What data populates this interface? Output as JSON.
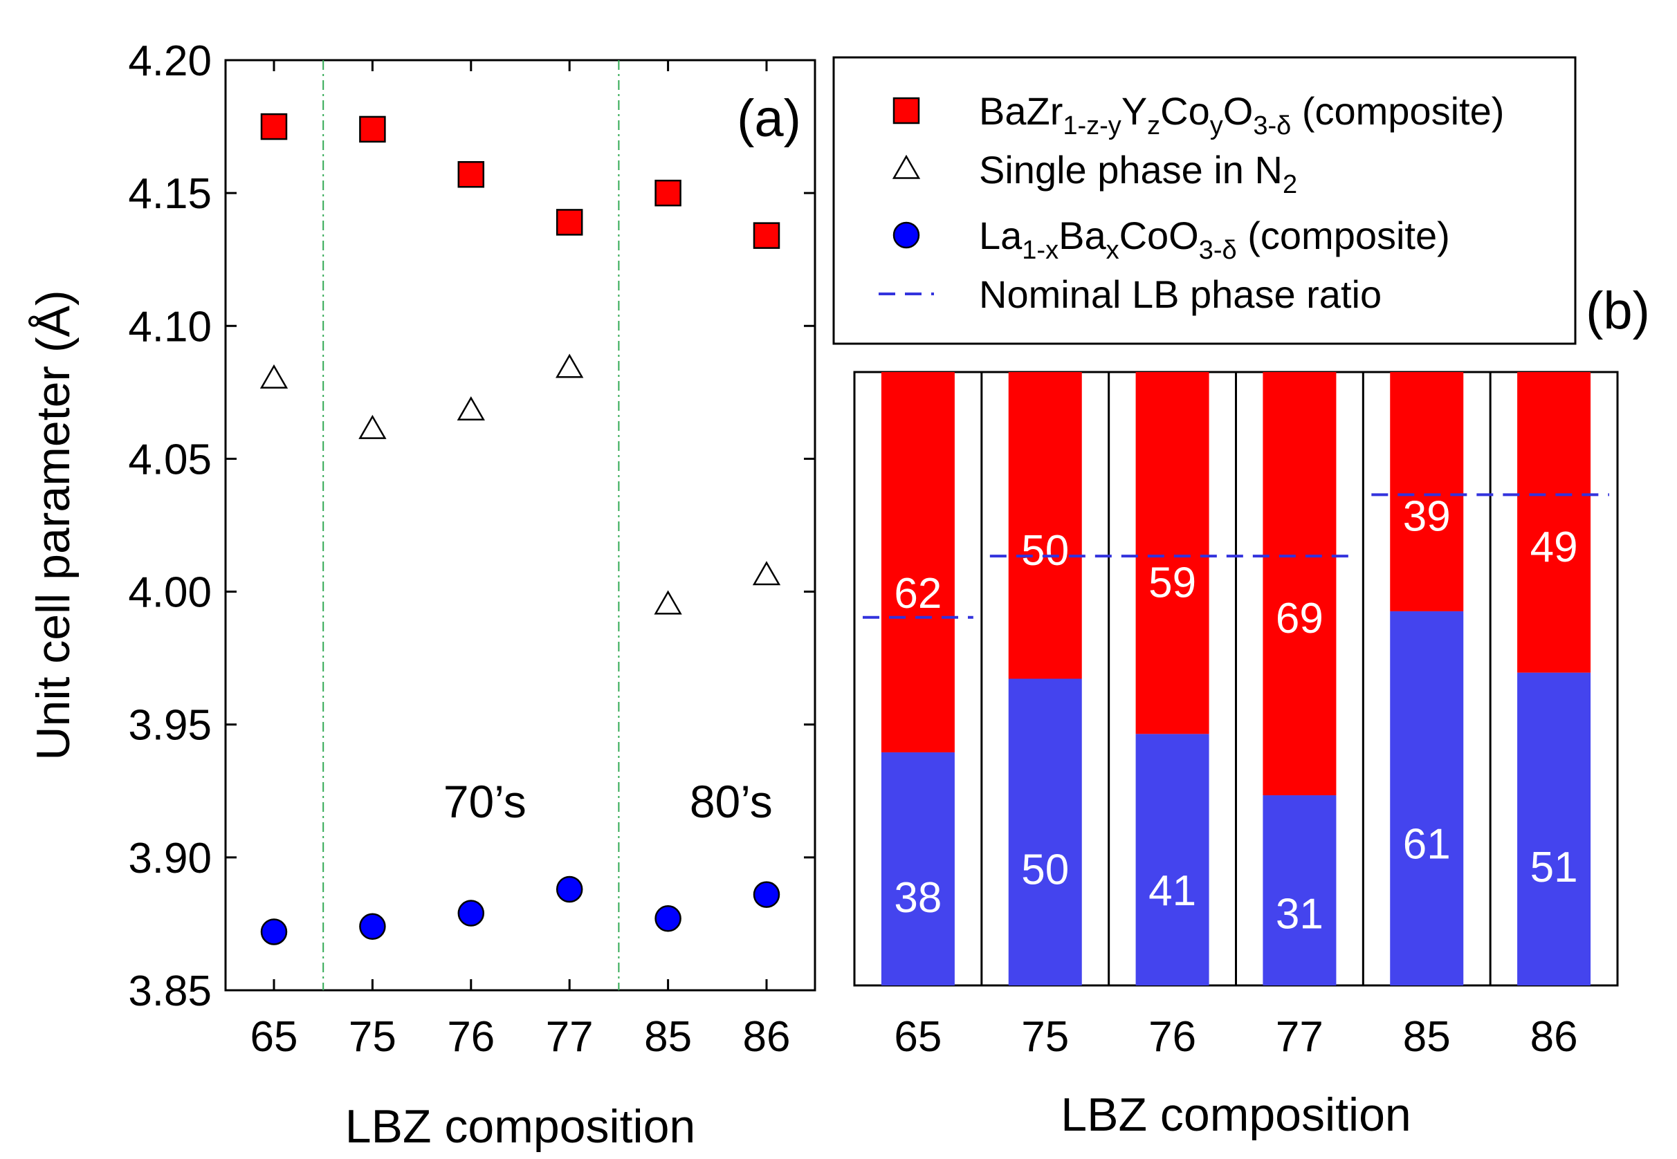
{
  "chart_data": [
    {
      "panel": "(a)",
      "type": "scatter",
      "panel_label": "(a)",
      "xlabel": "LBZ composition",
      "ylabel": "Unit cell parameter (Å)",
      "categories": [
        "65",
        "75",
        "76",
        "77",
        "85",
        "86"
      ],
      "ylim": [
        3.85,
        4.2
      ],
      "yticks": [
        "3.85",
        "3.90",
        "3.95",
        "4.00",
        "4.05",
        "4.10",
        "4.15",
        "4.20"
      ],
      "group_dividers_after_index": [
        0,
        3
      ],
      "group_labels": [
        "70’s",
        "80’s"
      ],
      "series": [
        {
          "name": "BaZr1-z-yYzCoyO3-δ (composite)",
          "marker": "square",
          "color": "#ff0000",
          "values": [
            4.175,
            4.174,
            4.157,
            4.139,
            4.15,
            4.134
          ]
        },
        {
          "name": "Single phase in N2",
          "marker": "triangle-open",
          "color": "#000000",
          "values": [
            4.08,
            4.061,
            4.068,
            4.084,
            3.995,
            4.006
          ]
        },
        {
          "name": "La1-xBaxCoO3-δ (composite)",
          "marker": "circle",
          "color": "#0000ff",
          "values": [
            3.872,
            3.874,
            3.879,
            3.888,
            3.877,
            3.886
          ]
        }
      ]
    },
    {
      "panel": "(b)",
      "type": "bar",
      "stacked": true,
      "panel_label": "(b)",
      "xlabel": "LBZ composition",
      "categories": [
        "65",
        "75",
        "76",
        "77",
        "85",
        "86"
      ],
      "ylim": [
        0,
        100
      ],
      "series": [
        {
          "name": "La1-xBaxCoO3-δ",
          "color": "#4444ee",
          "values": [
            38,
            50,
            41,
            31,
            61,
            51
          ],
          "labels": [
            "38",
            "50",
            "41",
            "31",
            "61",
            "51"
          ]
        },
        {
          "name": "BaZr1-z-yYzCoyO3-δ",
          "color": "#ff0000",
          "values": [
            62,
            50,
            59,
            69,
            39,
            49
          ],
          "labels": [
            "62",
            "50",
            "59",
            "69",
            "39",
            "49"
          ]
        }
      ],
      "nominal_lb_ratio": [
        {
          "categories": [
            "65"
          ],
          "value": 60
        },
        {
          "categories": [
            "75",
            "76",
            "77"
          ],
          "value": 70
        },
        {
          "categories": [
            "85",
            "86"
          ],
          "value": 80
        }
      ]
    }
  ],
  "legend": {
    "entries": [
      {
        "marker": "square",
        "color": "#ff0000",
        "parts": [
          {
            "t": "BaZr"
          },
          {
            "t": "1-z-y",
            "sub": true
          },
          {
            "t": "Y"
          },
          {
            "t": "z",
            "sub": true
          },
          {
            "t": "Co"
          },
          {
            "t": "y",
            "sub": true
          },
          {
            "t": "O"
          },
          {
            "t": "3-δ",
            "sub": true
          },
          {
            "t": " (composite)"
          }
        ]
      },
      {
        "marker": "triangle-open",
        "color": "#000000",
        "parts": [
          {
            "t": "Single phase in N"
          },
          {
            "t": "2",
            "sub": true
          }
        ]
      },
      {
        "marker": "circle",
        "color": "#0000ff",
        "parts": [
          {
            "t": "La"
          },
          {
            "t": "1-x",
            "sub": true
          },
          {
            "t": "Ba"
          },
          {
            "t": "x",
            "sub": true
          },
          {
            "t": "CoO"
          },
          {
            "t": "3-δ",
            "sub": true
          },
          {
            "t": " (composite)"
          }
        ]
      },
      {
        "marker": "dash",
        "color": "#3333dd",
        "parts": [
          {
            "t": "Nominal  LB phase ratio"
          }
        ]
      }
    ]
  }
}
